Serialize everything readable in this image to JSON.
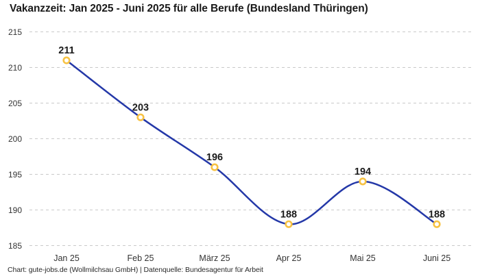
{
  "title": "Vakanzzeit: Jan 2025 - Juni 2025 für alle Berufe (Bundesland Thüringen)",
  "footer": "Chart: gute-jobs.de (Wollmilchsau GmbH) | Datenquelle: Bundesagentur für Arbeit",
  "chart_data": {
    "type": "line",
    "title": "Vakanzzeit: Jan 2025 - Juni 2025 für alle Berufe (Bundesland Thüringen)",
    "categories": [
      "Jan 25",
      "Feb 25",
      "März 25",
      "Apr 25",
      "Mai 25",
      "Juni 25"
    ],
    "values": [
      211,
      203,
      196,
      188,
      194,
      188
    ],
    "xlabel": "",
    "ylabel": "",
    "ylim": [
      185,
      215
    ],
    "yticks": [
      185,
      190,
      195,
      200,
      205,
      210,
      215
    ],
    "grid": "horizontal-dashed",
    "legend": "none",
    "curve": "smooth",
    "colors": {
      "line": "#2438a8",
      "marker_ring": "#f7c243",
      "marker_fill": "#ffffff",
      "gridline": "#c9c9c9",
      "tick_text": "#333333",
      "value_label": "#1a1a1a"
    }
  }
}
